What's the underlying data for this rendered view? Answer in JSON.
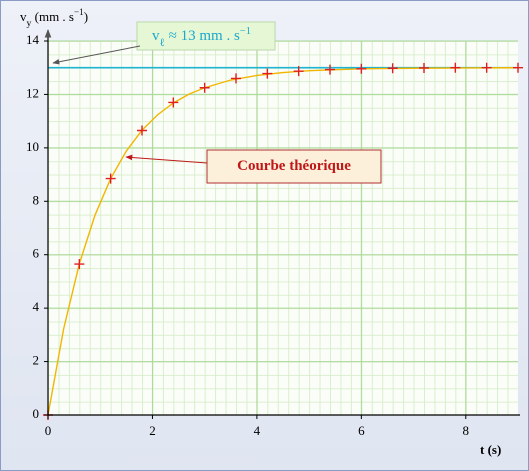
{
  "chart_data": {
    "type": "scatter",
    "y_label": [
      "v",
      "y",
      " (mm . s",
      "−1",
      ")"
    ],
    "x_label": "t (s)",
    "xlim": [
      0,
      9
    ],
    "ylim": [
      0,
      14
    ],
    "xticks": [
      0,
      2,
      4,
      6,
      8
    ],
    "yticks": [
      0,
      2,
      4,
      6,
      8,
      10,
      12,
      14
    ],
    "grid": true,
    "reference_line": 13,
    "reference_color": "#20b4d4",
    "annotations": [
      {
        "text": [
          "v",
          "ℓ",
          " ≈ 13  mm . s",
          "−1"
        ]
      },
      {
        "text": [
          "Courbe théorique"
        ]
      }
    ],
    "series": [
      {
        "style": "line",
        "color": "#f2b600",
        "x": [
          0,
          0.3,
          0.6,
          0.9,
          1.2,
          1.5,
          1.8,
          2.1,
          2.4,
          2.7,
          3,
          3.5,
          4,
          4.5,
          5,
          6,
          7,
          8,
          9
        ],
        "values": [
          0,
          3.23,
          5.66,
          7.48,
          8.85,
          9.88,
          10.66,
          11.24,
          11.68,
          12.01,
          12.25,
          12.54,
          12.71,
          12.82,
          12.89,
          12.96,
          12.98,
          12.99,
          13.0
        ]
      },
      {
        "style": "cross",
        "color": "#e02020",
        "x": [
          0,
          0.6,
          1.2,
          1.8,
          2.4,
          3.0,
          3.6,
          4.2,
          4.8,
          5.4,
          6.0,
          6.6,
          7.2,
          7.8,
          8.4,
          9.0
        ],
        "values": [
          0,
          5.65,
          8.85,
          10.65,
          11.7,
          12.25,
          12.6,
          12.78,
          12.87,
          12.93,
          12.96,
          12.98,
          12.99,
          13.0,
          13.0,
          13.0
        ]
      }
    ]
  }
}
